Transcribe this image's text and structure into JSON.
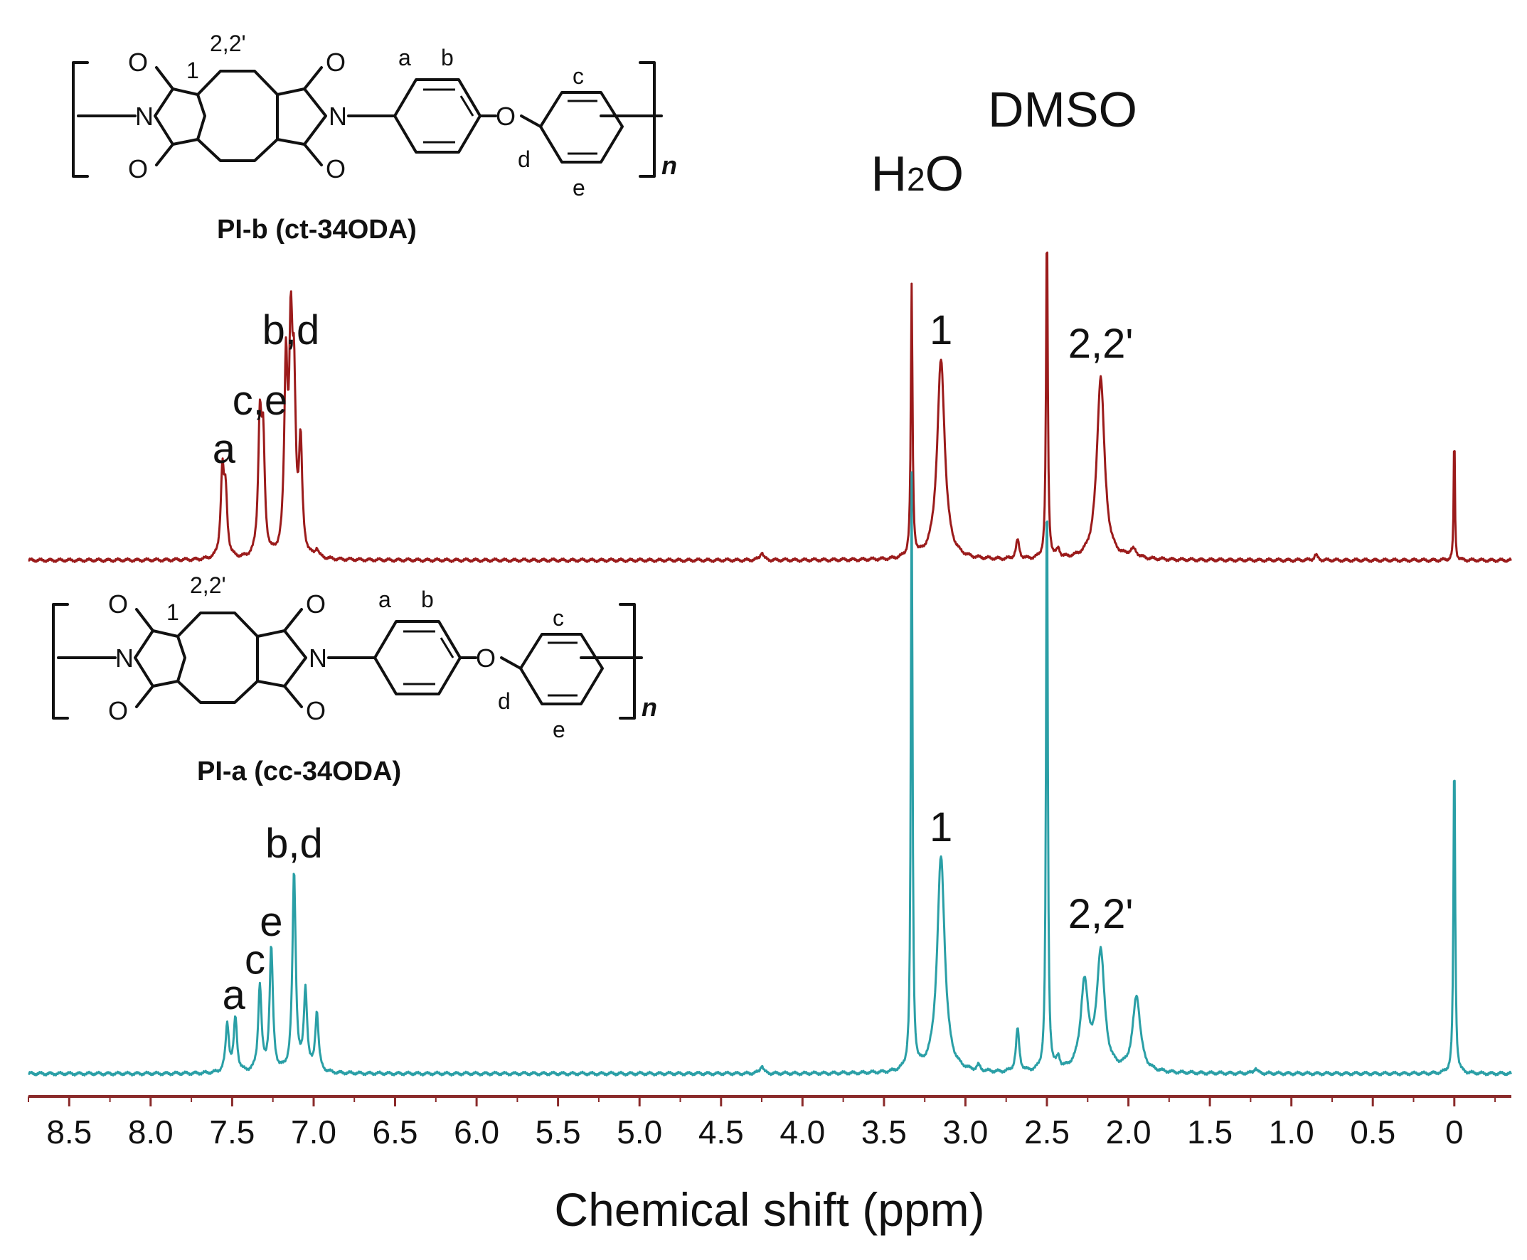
{
  "chart_data": {
    "type": "line",
    "title": "",
    "xlabel": "Chemical shift (ppm)",
    "ylabel": "",
    "xlim": [
      8.75,
      -0.35
    ],
    "x_reversed": true,
    "x_ticks": [
      "8.5",
      "8.0",
      "7.5",
      "7.0",
      "6.5",
      "6.0",
      "5.5",
      "5.0",
      "4.5",
      "4.0",
      "3.5",
      "3.0",
      "2.5",
      "2.0",
      "1.5",
      "1.0",
      "0.5",
      "0"
    ],
    "grid": false,
    "legend": "none",
    "series": [
      {
        "color": "#9b1b1b",
        "peaks": [
          [
            7.56,
            0.31
          ],
          [
            7.54,
            0.22
          ],
          [
            7.33,
            0.48
          ],
          [
            7.31,
            0.4
          ],
          [
            7.17,
            0.68
          ],
          [
            7.14,
            0.74
          ],
          [
            7.12,
            0.55
          ],
          [
            7.08,
            0.4
          ],
          [
            6.98,
            0.03
          ],
          [
            4.25,
            0.03
          ],
          [
            3.33,
            1.0
          ],
          [
            3.15,
            0.74
          ],
          [
            2.68,
            0.07
          ],
          [
            2.5,
            1.25
          ],
          [
            2.43,
            0.03
          ],
          [
            2.17,
            0.68
          ],
          [
            1.97,
            0.03
          ],
          [
            0.85,
            0.02
          ],
          [
            0.0,
            0.5
          ]
        ],
        "labels": [
          {
            "text": "a",
            "x": 7.55,
            "y": 0.36
          },
          {
            "text": "c,e",
            "x": 7.33,
            "y": 0.54
          },
          {
            "text": "b,d",
            "x": 7.14,
            "y": 0.8
          },
          {
            "text": "1",
            "x": 3.15,
            "y": 0.8
          },
          {
            "text": "2,2'",
            "x": 2.17,
            "y": 0.75
          }
        ]
      },
      {
        "color": "#2a9fa6",
        "peaks": [
          [
            7.53,
            0.18
          ],
          [
            7.48,
            0.2
          ],
          [
            7.33,
            0.32
          ],
          [
            7.26,
            0.46
          ],
          [
            7.12,
            0.74
          ],
          [
            7.05,
            0.3
          ],
          [
            6.98,
            0.22
          ],
          [
            4.25,
            0.03
          ],
          [
            3.33,
            2.2
          ],
          [
            3.15,
            0.8
          ],
          [
            2.92,
            0.02
          ],
          [
            2.68,
            0.16
          ],
          [
            2.5,
            2.25
          ],
          [
            2.43,
            0.04
          ],
          [
            2.27,
            0.32
          ],
          [
            2.17,
            0.44
          ],
          [
            1.95,
            0.28
          ],
          [
            1.22,
            0.02
          ],
          [
            0.0,
            1.2
          ]
        ],
        "labels": [
          {
            "text": "a",
            "x": 7.49,
            "y": 0.24
          },
          {
            "text": "c",
            "x": 7.36,
            "y": 0.37
          },
          {
            "text": "e",
            "x": 7.26,
            "y": 0.51
          },
          {
            "text": "b,d",
            "x": 7.12,
            "y": 0.8
          },
          {
            "text": "1",
            "x": 3.15,
            "y": 0.86
          },
          {
            "text": "2,2'",
            "x": 2.17,
            "y": 0.54
          }
        ]
      }
    ],
    "annotations": [
      {
        "text": "H2O",
        "x": 3.33
      },
      {
        "text": "DMSO",
        "x": 2.5
      }
    ]
  },
  "structures": [
    {
      "name": "PI-b (ct-34ODA)",
      "atom_labels": [
        "O",
        "O",
        "N",
        "O",
        "O",
        "N",
        "O"
      ],
      "position_labels": [
        "1",
        "2,2'",
        "a",
        "b",
        "c",
        "d",
        "e"
      ],
      "repeat": "n"
    },
    {
      "name": "PI-a (cc-34ODA)",
      "atom_labels": [
        "O",
        "O",
        "N",
        "O",
        "O",
        "N",
        "O"
      ],
      "position_labels": [
        "1",
        "2,2'",
        "a",
        "b",
        "c",
        "d",
        "e"
      ],
      "repeat": "n"
    }
  ]
}
